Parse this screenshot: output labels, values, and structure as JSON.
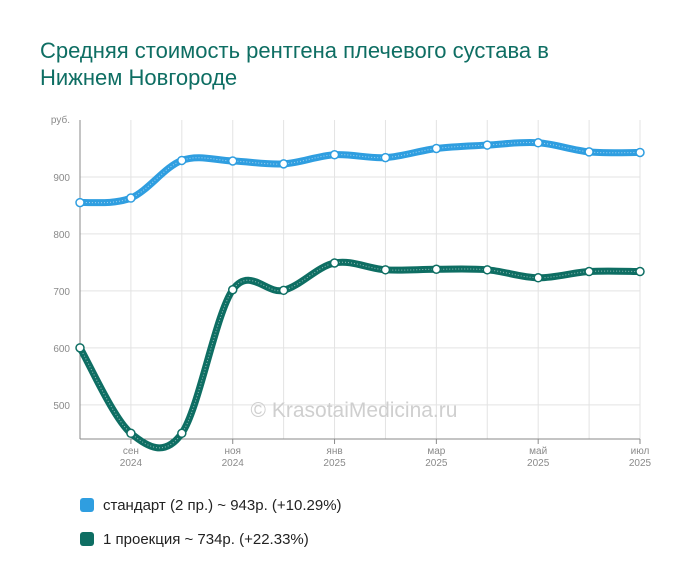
{
  "chart_data": {
    "type": "line",
    "title": "Средняя стоимость рентгена плечевого сустава в Нижнем Новгороде",
    "ylabel": "руб.",
    "ylim": [
      440,
      1000
    ],
    "y_ticks": [
      "500",
      "600",
      "700",
      "800",
      "900"
    ],
    "x_ticks": [
      {
        "month": "сен",
        "year": "2024"
      },
      {
        "month": "ноя",
        "year": "2024"
      },
      {
        "month": "янв",
        "year": "2025"
      },
      {
        "month": "мар",
        "year": "2025"
      },
      {
        "month": "май",
        "year": "2025"
      },
      {
        "month": "июл",
        "year": "2025"
      }
    ],
    "grid": true,
    "watermark": "© KrasotaiMedicina.ru",
    "series": [
      {
        "name": "стандарт (2 пр.)",
        "legend": "стандарт (2 пр.) ~ 943р. (+10.29%)",
        "color": "#2f9ee0",
        "values": [
          855,
          863,
          929,
          928,
          923,
          939,
          934,
          950,
          956,
          960,
          944,
          943
        ]
      },
      {
        "name": "1 проекция",
        "legend": "1 проекция ~ 734р. (+22.33%)",
        "color": "#0e6e63",
        "values": [
          600,
          450,
          450,
          702,
          701,
          749,
          737,
          738,
          737,
          723,
          734,
          734
        ]
      }
    ]
  }
}
